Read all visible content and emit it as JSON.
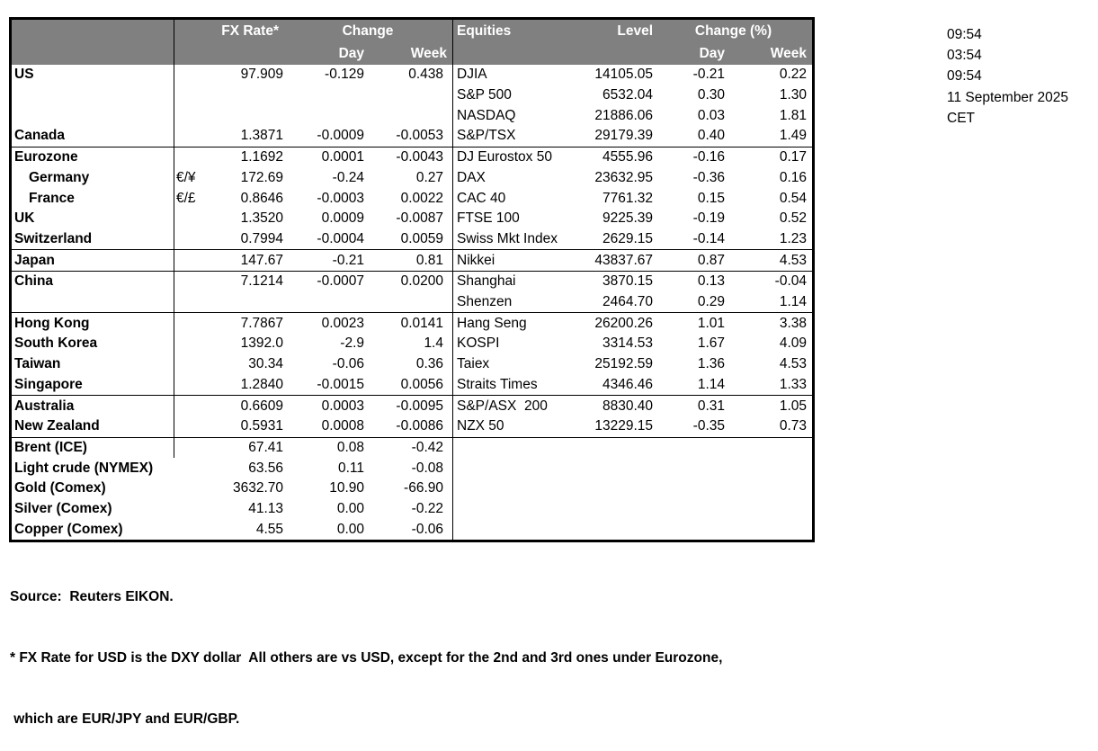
{
  "colors": {
    "header_bg": "#808080",
    "header_text": "#ffffff",
    "border": "#000000"
  },
  "header": {
    "fx_rate": "FX Rate*",
    "change": "Change",
    "day": "Day",
    "week": "Week",
    "equities": "Equities",
    "level": "Level",
    "change_pct": "Change (%)",
    "eq_day": "Day",
    "eq_week": "Week"
  },
  "rows": [
    {
      "name": "US",
      "pair": "",
      "fx": "97.909",
      "day": "-0.129",
      "week": "0.438",
      "ename": "DJIA",
      "level": "14105.05",
      "eday": "-0.21",
      "eweek": "0.22"
    },
    {
      "name": "",
      "ename": "S&P 500",
      "level": "6532.04",
      "eday": "0.30",
      "eweek": "1.30"
    },
    {
      "name": "",
      "ename": "NASDAQ",
      "level": "21886.06",
      "eday": "0.03",
      "eweek": "1.81"
    },
    {
      "name": "Canada",
      "fx": "1.3871",
      "day": "-0.0009",
      "week": "-0.0053",
      "ename": "S&P/TSX",
      "level": "29179.39",
      "eday": "0.40",
      "eweek": "1.49",
      "rule_below": true
    },
    {
      "name": "Eurozone",
      "fx": "1.1692",
      "day": "0.0001",
      "week": "-0.0043",
      "ename": "DJ Eurostox 50",
      "level": "4555.96",
      "eday": "-0.16",
      "eweek": "0.17"
    },
    {
      "name": "Germany",
      "indent": true,
      "pair": "€/¥",
      "fx": "172.69",
      "day": "-0.24",
      "week": "0.27",
      "ename": "DAX",
      "level": "23632.95",
      "eday": "-0.36",
      "eweek": "0.16"
    },
    {
      "name": "France",
      "indent": true,
      "pair": "€/£",
      "fx": "0.8646",
      "day": "-0.0003",
      "week": "0.0022",
      "ename": "CAC 40",
      "level": "7761.32",
      "eday": "0.15",
      "eweek": "0.54"
    },
    {
      "name": "UK",
      "fx": "1.3520",
      "day": "0.0009",
      "week": "-0.0087",
      "ename": "FTSE 100",
      "level": "9225.39",
      "eday": "-0.19",
      "eweek": "0.52"
    },
    {
      "name": "Switzerland",
      "fx": "0.7994",
      "day": "-0.0004",
      "week": "0.0059",
      "ename": "Swiss Mkt Index",
      "level": "2629.15",
      "eday": "-0.14",
      "eweek": "1.23",
      "rule_below": true
    },
    {
      "name": "Japan",
      "fx": "147.67",
      "day": "-0.21",
      "week": "0.81",
      "ename": "Nikkei",
      "level": "43837.67",
      "eday": "0.87",
      "eweek": "4.53",
      "rule_below": true
    },
    {
      "name": "China",
      "fx": "7.1214",
      "day": "-0.0007",
      "week": "0.0200",
      "ename": "Shanghai",
      "level": "3870.15",
      "eday": "0.13",
      "eweek": "-0.04"
    },
    {
      "name": "",
      "ename": "Shenzen",
      "level": "2464.70",
      "eday": "0.29",
      "eweek": "1.14",
      "rule_below": true
    },
    {
      "name": "Hong Kong",
      "fx": "7.7867",
      "day": "0.0023",
      "week": "0.0141",
      "ename": "Hang Seng",
      "level": "26200.26",
      "eday": "1.01",
      "eweek": "3.38"
    },
    {
      "name": "South Korea",
      "fx": "1392.0",
      "day": "-2.9",
      "week": "1.4",
      "ename": "KOSPI",
      "level": "3314.53",
      "eday": "1.67",
      "eweek": "4.09"
    },
    {
      "name": "Taiwan",
      "fx": "30.34",
      "day": "-0.06",
      "week": "0.36",
      "ename": "Taiex",
      "level": "25192.59",
      "eday": "1.36",
      "eweek": "4.53"
    },
    {
      "name": "Singapore",
      "fx": "1.2840",
      "day": "-0.0015",
      "week": "0.0056",
      "ename": "Straits Times",
      "level": "4346.46",
      "eday": "1.14",
      "eweek": "1.33",
      "rule_below": true
    },
    {
      "name": "Australia",
      "fx": "0.6609",
      "day": "0.0003",
      "week": "-0.0095",
      "ename": "S&P/ASX  200",
      "level": "8830.40",
      "eday": "0.31",
      "eweek": "1.05"
    },
    {
      "name": "New Zealand",
      "fx": "0.5931",
      "day": "0.0008",
      "week": "-0.0086",
      "ename": "NZX 50",
      "level": "13229.15",
      "eday": "-0.35",
      "eweek": "0.73",
      "rule_below": true
    },
    {
      "name": "Brent (ICE)",
      "fx": "67.41",
      "day": "0.08",
      "week": "-0.42"
    },
    {
      "name": "Light crude (NYMEX)",
      "fx": "63.56",
      "day": "0.11",
      "week": "-0.08",
      "no_vline": true
    },
    {
      "name": "Gold (Comex)",
      "fx": "3632.70",
      "day": "10.90",
      "week": "-66.90",
      "no_vline": true
    },
    {
      "name": "Silver (Comex)",
      "fx": "41.13",
      "day": "0.00",
      "week": "-0.22",
      "no_vline": true
    },
    {
      "name": "Copper (Comex)",
      "fx": "4.55",
      "day": "0.00",
      "week": "-0.06",
      "no_vline": true
    }
  ],
  "times": {
    "local": "09:54",
    "t2": "03:54",
    "t3": "09:54",
    "date": "11 September 2025",
    "zone": "CET"
  },
  "footer": {
    "source": "Source:  Reuters EIKON.",
    "note1": "* FX Rate for USD is the DXY dollar  All others are vs USD, except for the 2nd and 3rd ones under Eurozone,",
    "note2": " which are EUR/JPY and EUR/GBP."
  }
}
